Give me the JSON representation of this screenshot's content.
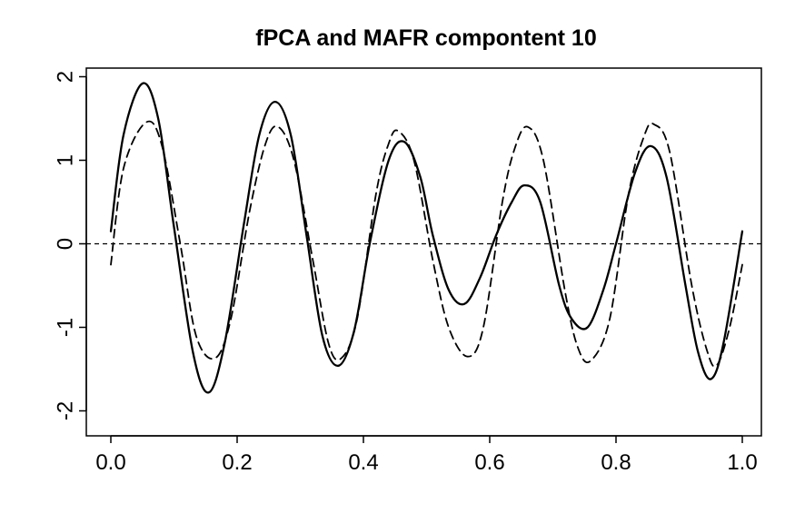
{
  "chart_data": {
    "type": "line",
    "title": "fPCA and MAFR compontent 10",
    "xlabel": "",
    "ylabel": "",
    "xlim": [
      0.0,
      1.0
    ],
    "ylim": [
      -2.25,
      2.05
    ],
    "x_ticks": [
      "0.0",
      "0.2",
      "0.4",
      "0.6",
      "0.8",
      "1.0"
    ],
    "y_ticks": [
      "2",
      "1",
      "0",
      "-1",
      "-2"
    ],
    "grid": false,
    "legend": "none",
    "reference_line": {
      "y": 0,
      "style": "dashed"
    },
    "series": [
      {
        "style": "solid",
        "color": "#000000",
        "x": [
          0.0,
          0.02,
          0.05,
          0.075,
          0.1,
          0.13,
          0.155,
          0.18,
          0.21,
          0.235,
          0.26,
          0.285,
          0.31,
          0.335,
          0.36,
          0.385,
          0.41,
          0.44,
          0.465,
          0.49,
          0.51,
          0.535,
          0.56,
          0.585,
          0.61,
          0.635,
          0.655,
          0.68,
          0.71,
          0.73,
          0.755,
          0.78,
          0.8,
          0.83,
          0.855,
          0.88,
          0.91,
          0.93,
          0.95,
          0.97,
          1.0
        ],
        "y": [
          0.15,
          1.3,
          1.92,
          1.5,
          0.2,
          -1.3,
          -1.78,
          -1.2,
          0.2,
          1.3,
          1.7,
          1.3,
          0.1,
          -1.1,
          -1.46,
          -1.05,
          0.0,
          1.0,
          1.22,
          0.8,
          0.1,
          -0.55,
          -0.72,
          -0.4,
          0.1,
          0.5,
          0.7,
          0.5,
          -0.5,
          -0.9,
          -1.0,
          -0.55,
          0.0,
          0.85,
          1.17,
          0.8,
          -0.5,
          -1.3,
          -1.62,
          -1.2,
          0.15
        ]
      },
      {
        "style": "dashed",
        "color": "#000000",
        "x": [
          0.0,
          0.02,
          0.055,
          0.08,
          0.11,
          0.135,
          0.165,
          0.19,
          0.22,
          0.245,
          0.265,
          0.29,
          0.32,
          0.345,
          0.365,
          0.39,
          0.42,
          0.44,
          0.455,
          0.48,
          0.51,
          0.535,
          0.565,
          0.59,
          0.62,
          0.64,
          0.66,
          0.685,
          0.72,
          0.74,
          0.76,
          0.79,
          0.82,
          0.845,
          0.86,
          0.885,
          0.92,
          0.945,
          0.96,
          0.98,
          1.0
        ],
        "y": [
          -0.25,
          0.9,
          1.45,
          1.2,
          0.0,
          -1.1,
          -1.37,
          -0.9,
          0.4,
          1.2,
          1.4,
          1.0,
          -0.2,
          -1.2,
          -1.37,
          -0.9,
          0.6,
          1.2,
          1.35,
          1.0,
          -0.2,
          -1.0,
          -1.35,
          -1.0,
          0.5,
          1.15,
          1.4,
          1.0,
          -0.6,
          -1.25,
          -1.4,
          -0.9,
          0.6,
          1.3,
          1.43,
          1.1,
          -0.5,
          -1.3,
          -1.45,
          -1.0,
          -0.25
        ]
      }
    ]
  }
}
